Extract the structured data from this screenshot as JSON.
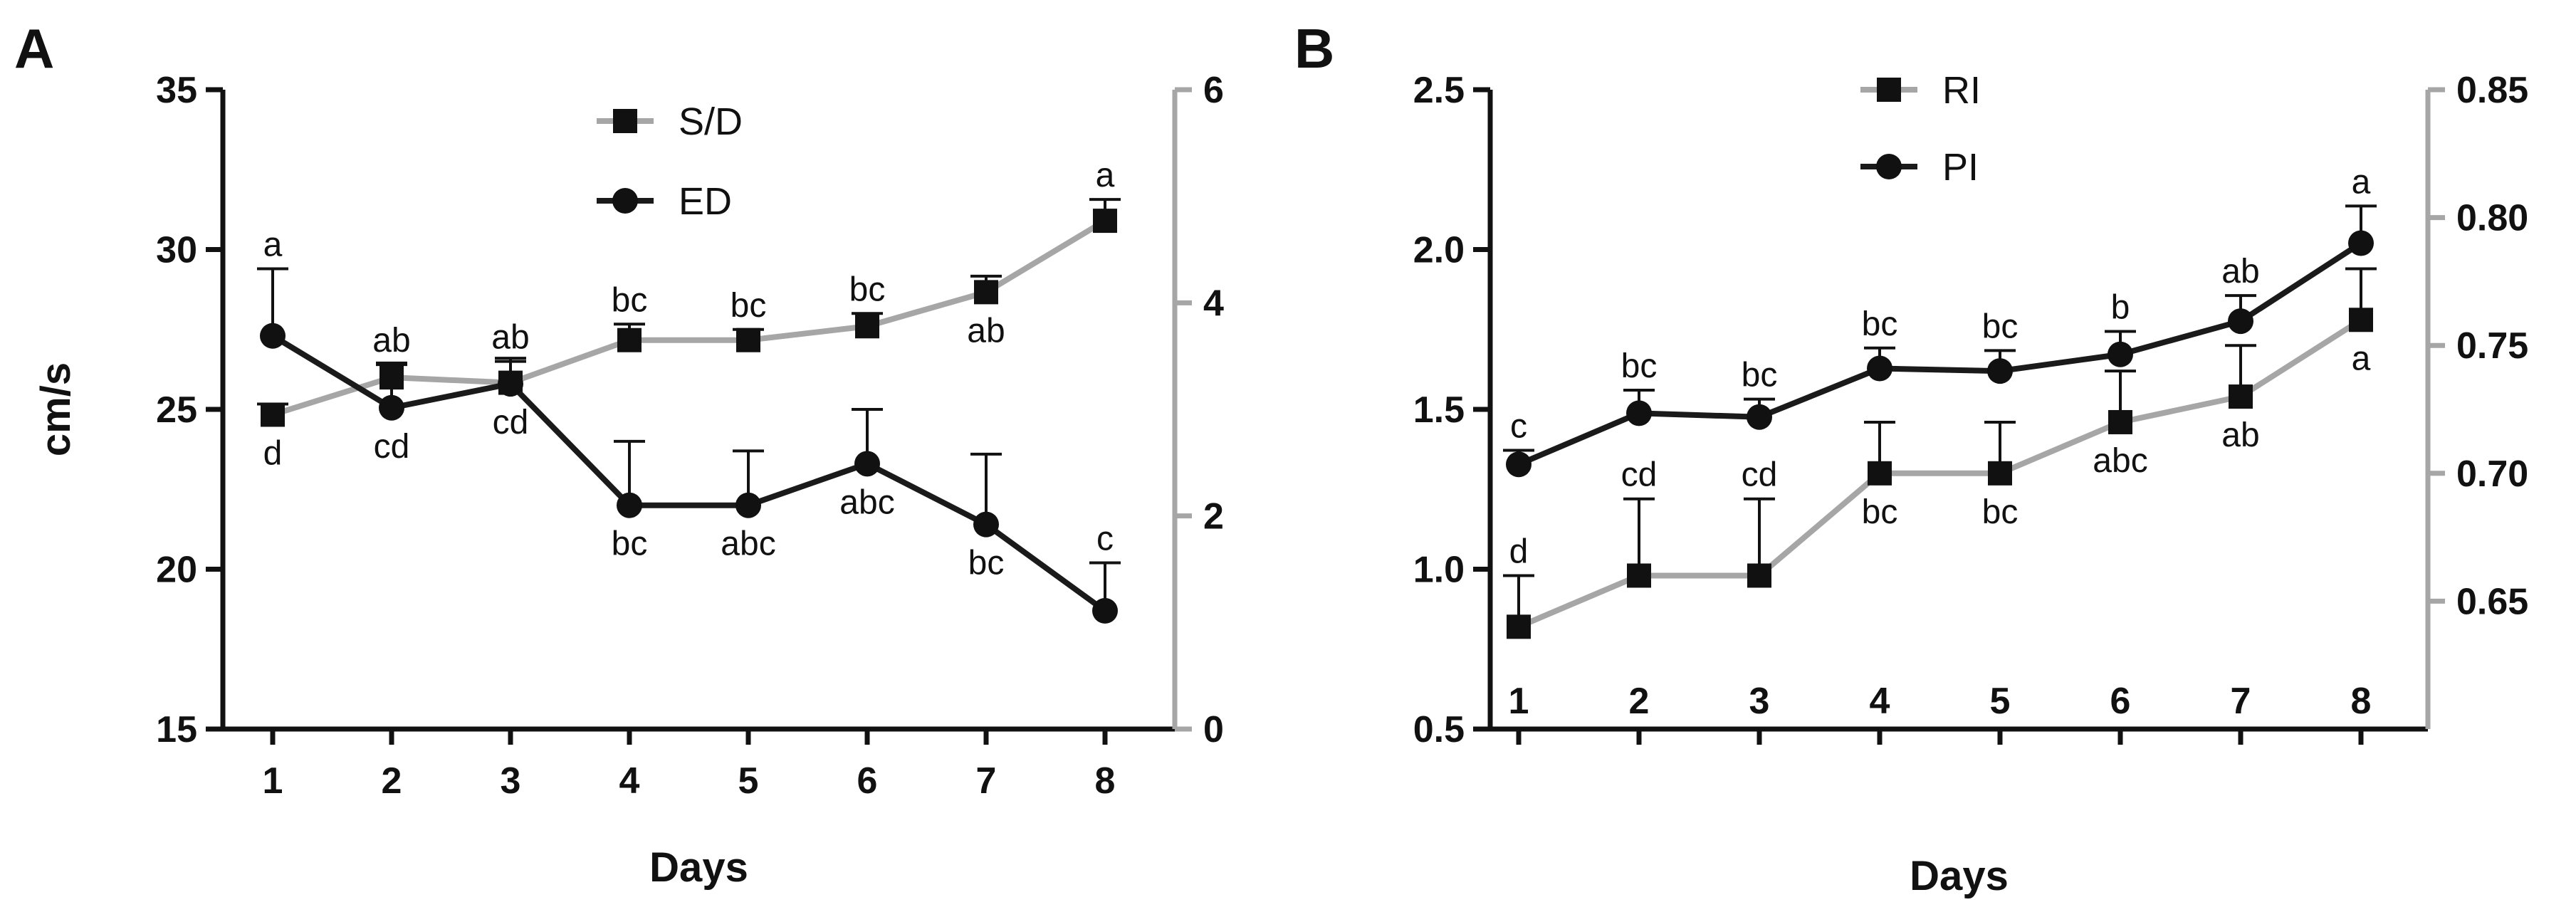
{
  "chart_data": [
    {
      "panel": "A",
      "type": "line",
      "xlabel": "Days",
      "ylabel": "cm/s",
      "categories": [
        "1",
        "2",
        "3",
        "4",
        "5",
        "6",
        "7",
        "8"
      ],
      "ylim": [
        15,
        35
      ],
      "yticks": [
        "15",
        "20",
        "25",
        "30",
        "35"
      ],
      "y2lim": [
        0,
        6
      ],
      "y2ticks": [
        "0",
        "2",
        "4",
        "6"
      ],
      "legend_position": "top-center",
      "series": [
        {
          "name": "S/D",
          "axis": "right",
          "marker": "square",
          "color": "#a6a6a6",
          "values": [
            2.95,
            3.3,
            3.25,
            3.65,
            3.65,
            3.78,
            4.1,
            4.77
          ],
          "error": [
            0.1,
            0.12,
            0.2,
            0.15,
            0.1,
            0.12,
            0.15,
            0.2
          ],
          "labels": [
            "d",
            "ab",
            "ab",
            "bc",
            "bc",
            "bc",
            "ab",
            "a"
          ],
          "label_position": [
            "below",
            "above",
            "above",
            "above",
            "above",
            "above",
            "below",
            "above"
          ]
        },
        {
          "name": "ED",
          "axis": "left",
          "marker": "circle",
          "color": "#1a1a1a",
          "values": [
            27.3,
            25.05,
            25.8,
            22.0,
            22.0,
            23.3,
            21.4,
            18.7
          ],
          "error": [
            2.1,
            1.4,
            0.8,
            2.0,
            1.7,
            1.7,
            2.2,
            1.5
          ],
          "labels": [
            "a",
            "cd",
            "cd",
            "bc",
            "abc",
            "abc",
            "bc",
            "c"
          ],
          "label_position": [
            "above",
            "below",
            "below",
            "below",
            "below",
            "below",
            "below",
            "above"
          ]
        }
      ]
    },
    {
      "panel": "B",
      "type": "line",
      "xlabel": "Days",
      "ylabel": "",
      "categories": [
        "1",
        "2",
        "3",
        "4",
        "5",
        "6",
        "7",
        "8"
      ],
      "ylim": [
        0.5,
        2.5
      ],
      "yticks": [
        "0.5",
        "1.0",
        "1.5",
        "2.0",
        "2.5"
      ],
      "y2lim": [
        0.6,
        0.85
      ],
      "y2ticks": [
        "0.65",
        "0.70",
        "0.75",
        "0.80",
        "0.85"
      ],
      "legend_position": "top-center",
      "series": [
        {
          "name": "RI",
          "axis": "left",
          "marker": "square",
          "color": "#a6a6a6",
          "values": [
            0.82,
            0.98,
            0.98,
            1.3,
            1.3,
            1.46,
            1.54,
            1.78
          ],
          "error": [
            0.16,
            0.24,
            0.24,
            0.16,
            0.16,
            0.16,
            0.16,
            0.16
          ],
          "labels": [
            "d",
            "cd",
            "cd",
            "bc",
            "bc",
            "abc",
            "ab",
            "a"
          ],
          "label_position": [
            "above",
            "above",
            "above",
            "below",
            "below",
            "below",
            "below",
            "below"
          ]
        },
        {
          "name": "PI",
          "axis": "right",
          "marker": "circle",
          "color": "#1a1a1a",
          "values": [
            0.7035,
            0.7235,
            0.722,
            0.741,
            0.74,
            0.7465,
            0.7595,
            0.79
          ],
          "error": [
            0.0055,
            0.009,
            0.007,
            0.008,
            0.008,
            0.009,
            0.01,
            0.0145
          ],
          "labels": [
            "c",
            "bc",
            "bc",
            "bc",
            "bc",
            "b",
            "ab",
            "a"
          ],
          "label_position": [
            "above",
            "above",
            "above",
            "above",
            "above",
            "above",
            "above",
            "above"
          ]
        }
      ]
    }
  ]
}
